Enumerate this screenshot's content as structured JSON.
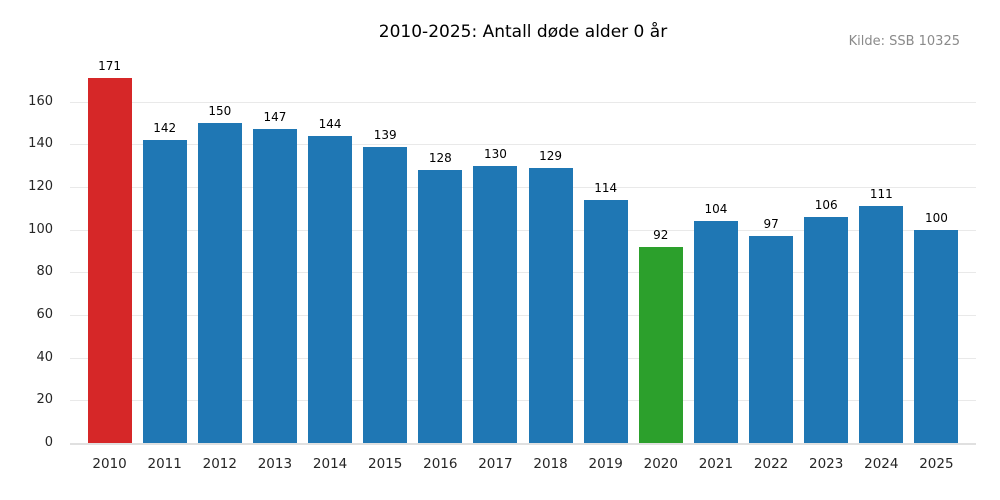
{
  "chart_data": {
    "type": "bar",
    "title": "2010-2025: Antall døde alder 0 år",
    "source_note": "Kilde: SSB 10325",
    "categories": [
      "2010",
      "2011",
      "2012",
      "2013",
      "2014",
      "2015",
      "2016",
      "2017",
      "2018",
      "2019",
      "2020",
      "2021",
      "2022",
      "2023",
      "2024",
      "2025"
    ],
    "values": [
      171,
      142,
      150,
      147,
      144,
      139,
      128,
      130,
      129,
      114,
      92,
      104,
      97,
      106,
      111,
      100
    ],
    "colors": [
      "#d62728",
      "#1f77b4",
      "#1f77b4",
      "#1f77b4",
      "#1f77b4",
      "#1f77b4",
      "#1f77b4",
      "#1f77b4",
      "#1f77b4",
      "#1f77b4",
      "#2ca02c",
      "#1f77b4",
      "#1f77b4",
      "#1f77b4",
      "#1f77b4",
      "#1f77b4"
    ],
    "default_bar_color": "#1f77b4",
    "highlight_colors": {
      "2010": "#d62728",
      "2020": "#2ca02c"
    },
    "value_labels": true,
    "xlabel": "",
    "ylabel": "",
    "ylim": [
      0,
      180
    ],
    "yticks": [
      0,
      20,
      40,
      60,
      80,
      100,
      120,
      140,
      160
    ],
    "grid": "horizontal",
    "legend": "none",
    "styling": {
      "gridline_color": "#e9e9e9",
      "baseline_color": "#e0e0e0",
      "source_text_color": "#8a8a8a",
      "title_color": "#000000"
    }
  }
}
